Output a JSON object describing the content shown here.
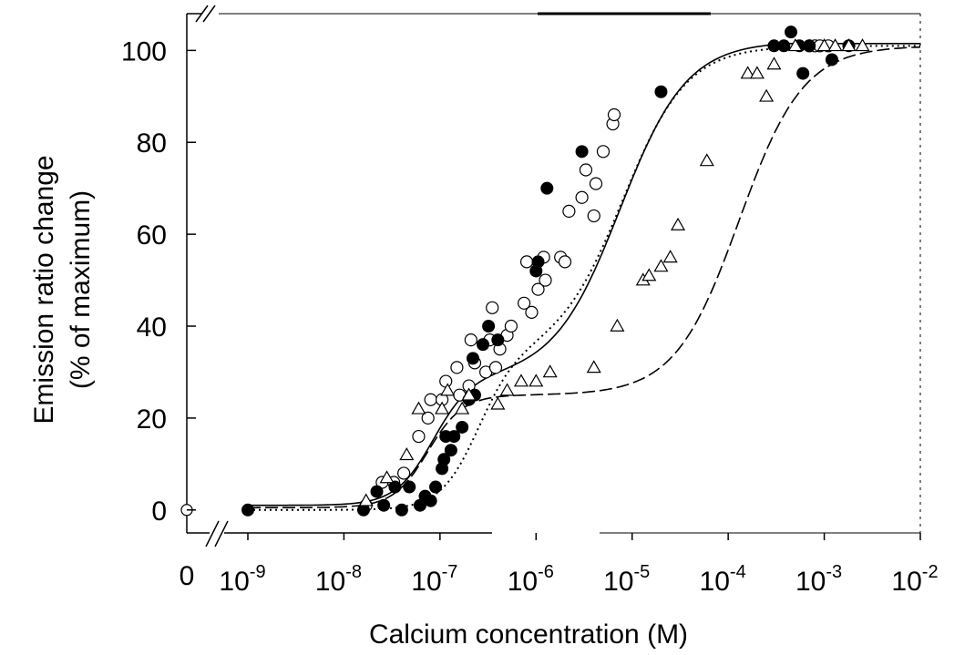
{
  "chart_data": {
    "type": "scatter",
    "title": "",
    "xlabel": "Calcium concentration (M)",
    "ylabel_line1": "Emission ratio change",
    "ylabel_line2": "(% of maximum)",
    "x_scale": "log",
    "xlim": [
      1e-09,
      0.01
    ],
    "ylim": [
      -5,
      108
    ],
    "zero_point": {
      "label": "0",
      "value": 0
    },
    "x_ticks": [
      {
        "value": 1e-09,
        "base": "10",
        "exp": "-9"
      },
      {
        "value": 1e-08,
        "base": "10",
        "exp": "-8"
      },
      {
        "value": 1e-07,
        "base": "10",
        "exp": "-7"
      },
      {
        "value": 1e-06,
        "base": "10",
        "exp": "-6"
      },
      {
        "value": 1e-05,
        "base": "10",
        "exp": "-5"
      },
      {
        "value": 0.0001,
        "base": "10",
        "exp": "-4"
      },
      {
        "value": 0.001,
        "base": "10",
        "exp": "-3"
      },
      {
        "value": 0.01,
        "base": "10",
        "exp": "-2"
      }
    ],
    "y_ticks": [
      {
        "value": 0,
        "label": "0"
      },
      {
        "value": 20,
        "label": "20"
      },
      {
        "value": 40,
        "label": "40"
      },
      {
        "value": 60,
        "label": "60"
      },
      {
        "value": 80,
        "label": "80"
      },
      {
        "value": 100,
        "label": "100"
      }
    ],
    "grid": false,
    "series": [
      {
        "marker": "open-circle",
        "line": "solid",
        "zero_value": 0,
        "points": [
          [
            1.7e-08,
            1
          ],
          [
            2.5e-08,
            6
          ],
          [
            3.3e-08,
            6
          ],
          [
            4.2e-08,
            8
          ],
          [
            6e-08,
            16
          ],
          [
            7.5e-08,
            20
          ],
          [
            8e-08,
            24
          ],
          [
            1.05e-07,
            24
          ],
          [
            1.15e-07,
            28
          ],
          [
            1.5e-07,
            31
          ],
          [
            1.6e-07,
            25
          ],
          [
            2e-07,
            27
          ],
          [
            2.1e-07,
            37
          ],
          [
            2.3e-07,
            32
          ],
          [
            3e-07,
            30
          ],
          [
            3.3e-07,
            37
          ],
          [
            3.5e-07,
            44
          ],
          [
            3.8e-07,
            31
          ],
          [
            4.2e-07,
            35
          ],
          [
            5e-07,
            38
          ],
          [
            5.5e-07,
            40
          ],
          [
            7.5e-07,
            45
          ],
          [
            8e-07,
            54
          ],
          [
            9e-07,
            43
          ],
          [
            1.05e-06,
            48
          ],
          [
            1.2e-06,
            55
          ],
          [
            1.25e-06,
            50
          ],
          [
            1.8e-06,
            55
          ],
          [
            2e-06,
            54
          ],
          [
            2.2e-06,
            65
          ],
          [
            3e-06,
            68
          ],
          [
            3.3e-06,
            74
          ],
          [
            4e-06,
            64
          ],
          [
            4.2e-06,
            71
          ],
          [
            5e-06,
            78
          ],
          [
            6.3e-06,
            84
          ],
          [
            6.5e-06,
            86
          ],
          [
            0.0007,
            101
          ],
          [
            0.0008,
            101
          ],
          [
            0.0009,
            101
          ],
          [
            0.0011,
            101
          ]
        ]
      },
      {
        "marker": "filled-circle",
        "line": "dotted",
        "points": [
          [
            1e-09,
            0
          ],
          [
            1.6e-08,
            0
          ],
          [
            2.2e-08,
            4
          ],
          [
            2.6e-08,
            1
          ],
          [
            3.4e-08,
            5
          ],
          [
            4e-08,
            0
          ],
          [
            4.8e-08,
            5
          ],
          [
            6.2e-08,
            1
          ],
          [
            7e-08,
            3
          ],
          [
            8e-08,
            2
          ],
          [
            9e-08,
            5
          ],
          [
            1.05e-07,
            9
          ],
          [
            1.1e-07,
            11
          ],
          [
            1.15e-07,
            16
          ],
          [
            1.3e-07,
            13
          ],
          [
            1.4e-07,
            16
          ],
          [
            1.7e-07,
            18
          ],
          [
            2e-07,
            24
          ],
          [
            2.2e-07,
            33
          ],
          [
            2.3e-07,
            25
          ],
          [
            2.8e-07,
            36
          ],
          [
            3.2e-07,
            40
          ],
          [
            4e-07,
            37
          ],
          [
            1e-06,
            52
          ],
          [
            1.05e-06,
            54
          ],
          [
            1.3e-06,
            70
          ],
          [
            3e-06,
            78
          ],
          [
            2e-05,
            91
          ],
          [
            0.0003,
            101
          ],
          [
            0.00038,
            101
          ],
          [
            0.00045,
            104
          ],
          [
            0.00055,
            101
          ],
          [
            0.0006,
            95
          ],
          [
            0.0007,
            101
          ],
          [
            0.0012,
            98
          ],
          [
            0.0018,
            101
          ]
        ]
      },
      {
        "marker": "open-triangle",
        "line": "dashed",
        "points": [
          [
            1.7e-08,
            2
          ],
          [
            2.8e-08,
            7
          ],
          [
            4.5e-08,
            12
          ],
          [
            6e-08,
            22
          ],
          [
            1.05e-07,
            22
          ],
          [
            1.2e-07,
            26
          ],
          [
            1.7e-07,
            22
          ],
          [
            2e-07,
            25
          ],
          [
            4e-07,
            23
          ],
          [
            5e-07,
            26
          ],
          [
            7e-07,
            28
          ],
          [
            1e-06,
            28
          ],
          [
            1.4e-06,
            30
          ],
          [
            4e-06,
            31
          ],
          [
            7e-06,
            40
          ],
          [
            1.3e-05,
            50
          ],
          [
            1.5e-05,
            51
          ],
          [
            2e-05,
            53
          ],
          [
            2.5e-05,
            55
          ],
          [
            3e-05,
            62
          ],
          [
            6e-05,
            76
          ],
          [
            0.00016,
            95
          ],
          [
            0.0002,
            95
          ],
          [
            0.00025,
            90
          ],
          [
            0.0003,
            97
          ],
          [
            0.0005,
            101
          ],
          [
            0.001,
            101
          ],
          [
            0.0013,
            101
          ],
          [
            0.0018,
            101
          ],
          [
            0.0025,
            101
          ]
        ]
      }
    ],
    "fit_curves": [
      {
        "style": "solid",
        "segments": [
          {
            "amp": 28,
            "kd": 8.5e-08,
            "n": 2.2
          },
          {
            "amp": 73,
            "kd": 7.5e-06,
            "n": 1.25
          }
        ],
        "offset": 1
      },
      {
        "style": "dotted",
        "segments": [
          {
            "amp": 34,
            "kd": 2.5e-07,
            "n": 2.2
          },
          {
            "amp": 67,
            "kd": 8e-06,
            "n": 1.3
          }
        ],
        "offset": 0
      },
      {
        "style": "dashed",
        "segments": [
          {
            "amp": 24.5,
            "kd": 7.5e-08,
            "n": 2.4
          },
          {
            "amp": 76,
            "kd": 0.00013,
            "n": 1.3
          }
        ],
        "offset": 0.5
      }
    ]
  }
}
